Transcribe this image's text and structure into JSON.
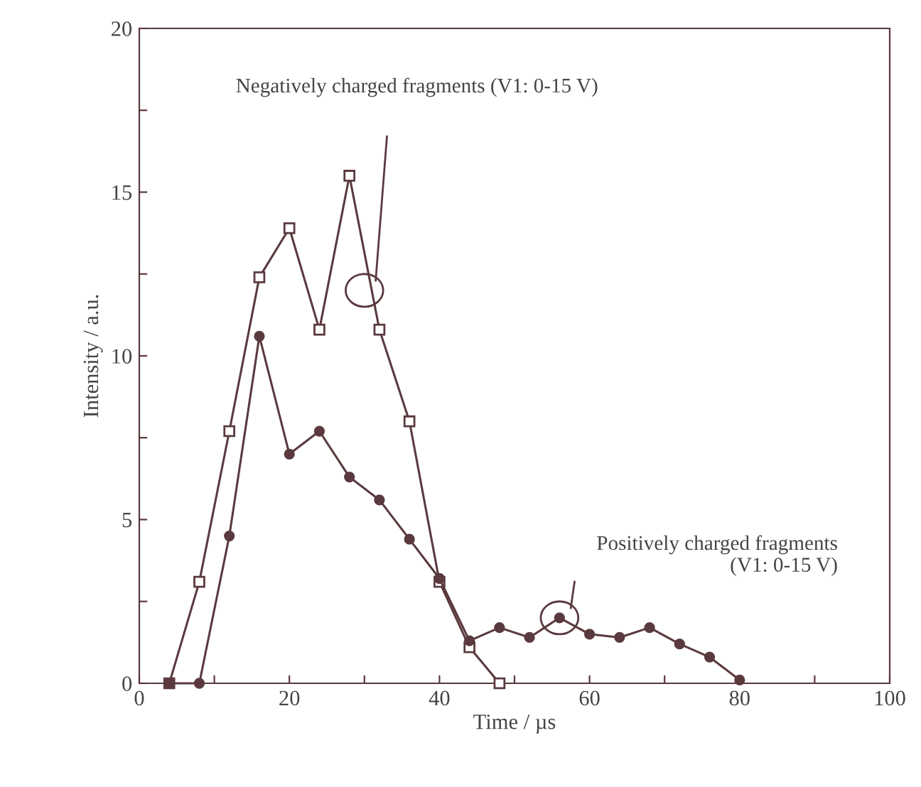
{
  "chart_data": {
    "type": "line",
    "xlabel": "Time / µs",
    "ylabel": "Intensity / a.u.",
    "xlim": [
      0,
      100
    ],
    "ylim": [
      0,
      20
    ],
    "xticks": [
      0,
      {
        "value": 10,
        "label": null
      },
      20,
      {
        "value": 30,
        "label": null
      },
      40,
      {
        "value": 50,
        "label": null
      },
      60,
      {
        "value": 70,
        "label": null
      },
      80,
      {
        "value": 90,
        "label": null
      },
      100
    ],
    "yticks": [
      0,
      {
        "value": 2.5,
        "label": null
      },
      5,
      {
        "value": 7.5,
        "label": null
      },
      10,
      {
        "value": 12.5,
        "label": null
      },
      15,
      {
        "value": 17.5,
        "label": null
      },
      20
    ],
    "grid": false,
    "legend": false,
    "series": [
      {
        "marker": "square",
        "color": "#5a3a3e",
        "x": [
          4,
          8,
          12,
          16,
          20,
          24,
          28,
          32,
          36,
          40,
          44,
          48
        ],
        "values": [
          0,
          3.1,
          7.7,
          12.4,
          13.9,
          10.8,
          15.5,
          10.8,
          8.0,
          3.1,
          1.1,
          0
        ]
      },
      {
        "marker": "circle",
        "color": "#5a3a3e",
        "x": [
          4,
          8,
          12,
          16,
          20,
          24,
          28,
          32,
          36,
          40,
          44,
          48,
          52,
          56,
          60,
          64,
          68,
          72,
          76,
          80
        ],
        "values": [
          0,
          0,
          4.5,
          10.6,
          7.0,
          7.7,
          6.3,
          5.6,
          4.4,
          3.2,
          1.3,
          1.7,
          1.4,
          2.0,
          1.5,
          1.4,
          1.7,
          1.2,
          0.8,
          0.1
        ]
      }
    ],
    "annotations": [
      "Negatively charged fragments (V1: 0-15 V)",
      "Positively charged fragments\n(V1: 0-15 V)"
    ]
  }
}
